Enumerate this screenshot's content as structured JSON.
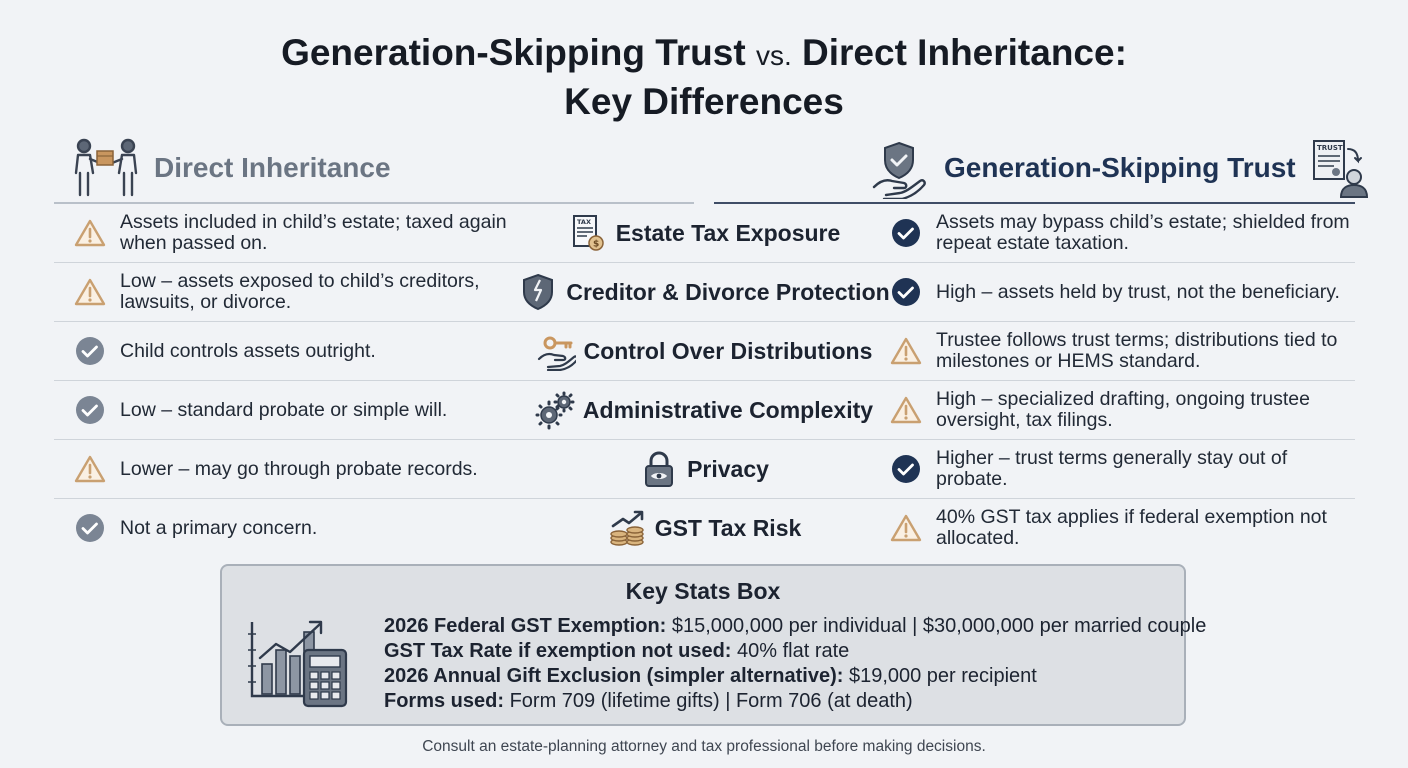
{
  "title": {
    "part1": "Generation-Skipping Trust",
    "vs": "vs.",
    "part2": "Direct Inheritance:",
    "line2": "Key Differences"
  },
  "left_header": {
    "label": "Direct Inheritance",
    "icon": "handover-people-icon"
  },
  "right_header": {
    "label": "Generation-Skipping Trust",
    "icon": "shield-hand-icon",
    "icon2": "trust-document-person-icon",
    "doc_text": "TRUST"
  },
  "colors": {
    "warning": "#c9a071",
    "check_gray": "#7b8594",
    "check_navy": "#1f3354"
  },
  "rows": [
    {
      "left": "Assets included in child’s estate; taxed again when passed on.",
      "left_status": "warning",
      "middle": "Estate Tax Exposure",
      "middle_icon": "tax-document-icon",
      "right": "Assets may bypass child’s estate; shielded from repeat estate taxation.",
      "right_status": "check"
    },
    {
      "left": "Low – assets exposed to child’s creditors, lawsuits, or divorce.",
      "left_status": "warning",
      "middle": "Creditor & Divorce Protection",
      "middle_icon": "cracked-shield-icon",
      "right": "High – assets held by trust, not the beneficiary.",
      "right_status": "check"
    },
    {
      "left": "Child controls assets outright.",
      "left_status": "check",
      "middle": "Control Over Distributions",
      "middle_icon": "key-hand-icon",
      "right": "Trustee follows trust terms; distributions tied to milestones or HEMS standard.",
      "right_status": "warning"
    },
    {
      "left": "Low – standard probate or simple will.",
      "left_status": "check",
      "middle": "Administrative Complexity",
      "middle_icon": "gears-icon",
      "right": "High – specialized drafting, ongoing trustee oversight, tax filings.",
      "right_status": "warning"
    },
    {
      "left": "Lower – may go through probate records.",
      "left_status": "warning",
      "middle": "Privacy",
      "middle_icon": "padlock-eye-icon",
      "right": "Higher – trust terms generally stay out of probate.",
      "right_status": "check"
    },
    {
      "left": "Not a primary concern.",
      "left_status": "check",
      "middle": "GST Tax Risk",
      "middle_icon": "coins-arrow-icon",
      "right": "40% GST tax applies if federal exemption not allocated.",
      "right_status": "warning"
    }
  ],
  "stats": {
    "title": "Key Stats Box",
    "icon": "chart-calculator-icon",
    "lines": [
      {
        "label": "2026 Federal GST Exemption:",
        "value": " $15,000,000 per individual | $30,000,000 per married couple"
      },
      {
        "label": "GST Tax Rate if exemption not used:",
        "value": " 40% flat rate"
      },
      {
        "label": "2026 Annual Gift Exclusion (simpler alternative):",
        "value": " $19,000 per recipient"
      },
      {
        "label": "Forms used:",
        "value": " Form 709 (lifetime gifts) | Form 706 (at death)"
      }
    ]
  },
  "footer": "Consult an estate-planning attorney and tax professional before making decisions."
}
